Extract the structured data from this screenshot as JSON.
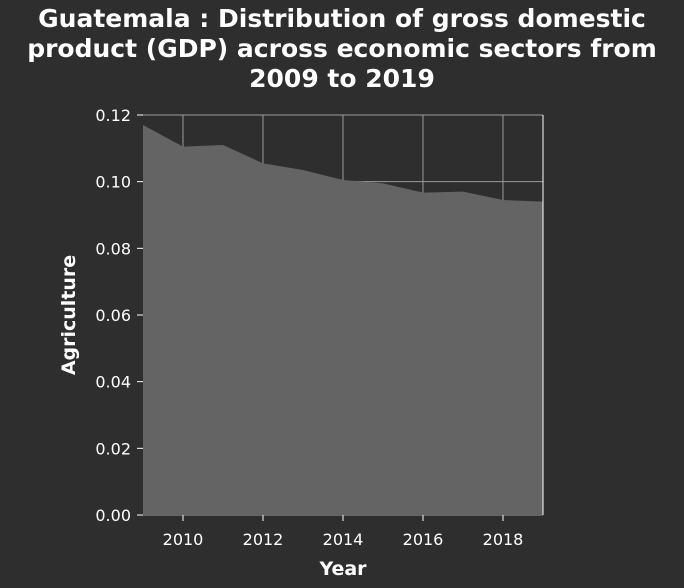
{
  "chart_data": {
    "type": "area",
    "title_lines": [
      "Guatemala : Distribution of gross domestic",
      "product (GDP) across economic sectors from",
      "2009 to 2019"
    ],
    "xlabel": "Year",
    "ylabel": "Agriculture",
    "x": [
      2009,
      2010,
      2011,
      2012,
      2013,
      2014,
      2015,
      2016,
      2017,
      2018,
      2019
    ],
    "series": [
      {
        "values": [
          0.117,
          0.1105,
          0.111,
          0.1055,
          0.1035,
          0.1005,
          0.0995,
          0.0967,
          0.097,
          0.0945,
          0.094
        ]
      }
    ],
    "xlim": [
      2009,
      2019
    ],
    "ylim": [
      0,
      0.12
    ],
    "x_ticks": [
      "2010",
      "2012",
      "2014",
      "2016",
      "2018"
    ],
    "y_ticks": [
      "0.00",
      "0.02",
      "0.04",
      "0.06",
      "0.08",
      "0.10",
      "0.12"
    ],
    "grid": true,
    "colors": {
      "background": "#2e2e2e",
      "fill": "#646464",
      "grid": "#9a9a9a",
      "text": "#ffffff"
    }
  }
}
